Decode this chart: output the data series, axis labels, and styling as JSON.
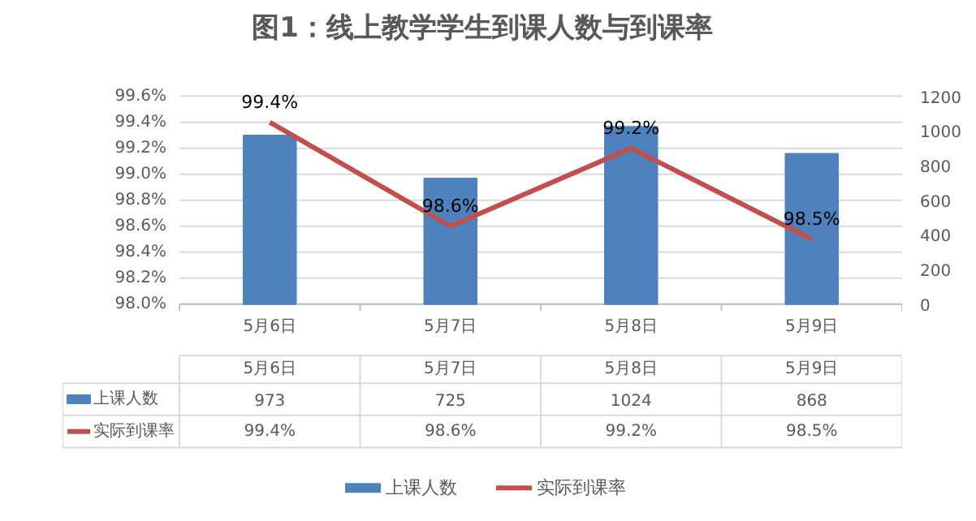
{
  "chart_data": {
    "type": "bar",
    "title": "图1：线上教学学生到课人数与到课率",
    "categories": [
      "5月6日",
      "5月7日",
      "5月8日",
      "5月9日"
    ],
    "series": [
      {
        "name": "上课人数",
        "color": "#4f81bd",
        "values": [
          973,
          725,
          1024,
          868
        ],
        "axis": "y2"
      },
      {
        "name": "实际到课率",
        "type": "line",
        "color": "#c0504d",
        "values": [
          99.4,
          98.6,
          99.2,
          98.5
        ],
        "value_labels": [
          "99.4%",
          "98.6%",
          "99.2%",
          "98.5%"
        ]
      }
    ],
    "ylim": [
      98.0,
      99.6
    ],
    "yticks": [
      {
        "value": 98.0,
        "label": "98.0%"
      },
      {
        "value": 98.2,
        "label": "98.2%"
      },
      {
        "value": 98.4,
        "label": "98.4%"
      },
      {
        "value": 98.6,
        "label": "98.6%"
      },
      {
        "value": 98.8,
        "label": "98.8%"
      },
      {
        "value": 99.0,
        "label": "99.0%"
      },
      {
        "value": 99.2,
        "label": "99.2%"
      },
      {
        "value": 99.4,
        "label": "99.4%"
      },
      {
        "value": 99.6,
        "label": "99.6%"
      }
    ],
    "y2lim": [
      0,
      1200
    ],
    "y2ticks": [
      0,
      200,
      400,
      600,
      800,
      1000,
      1200
    ],
    "grid": "y",
    "legend": "bottom",
    "data_labels": true
  }
}
